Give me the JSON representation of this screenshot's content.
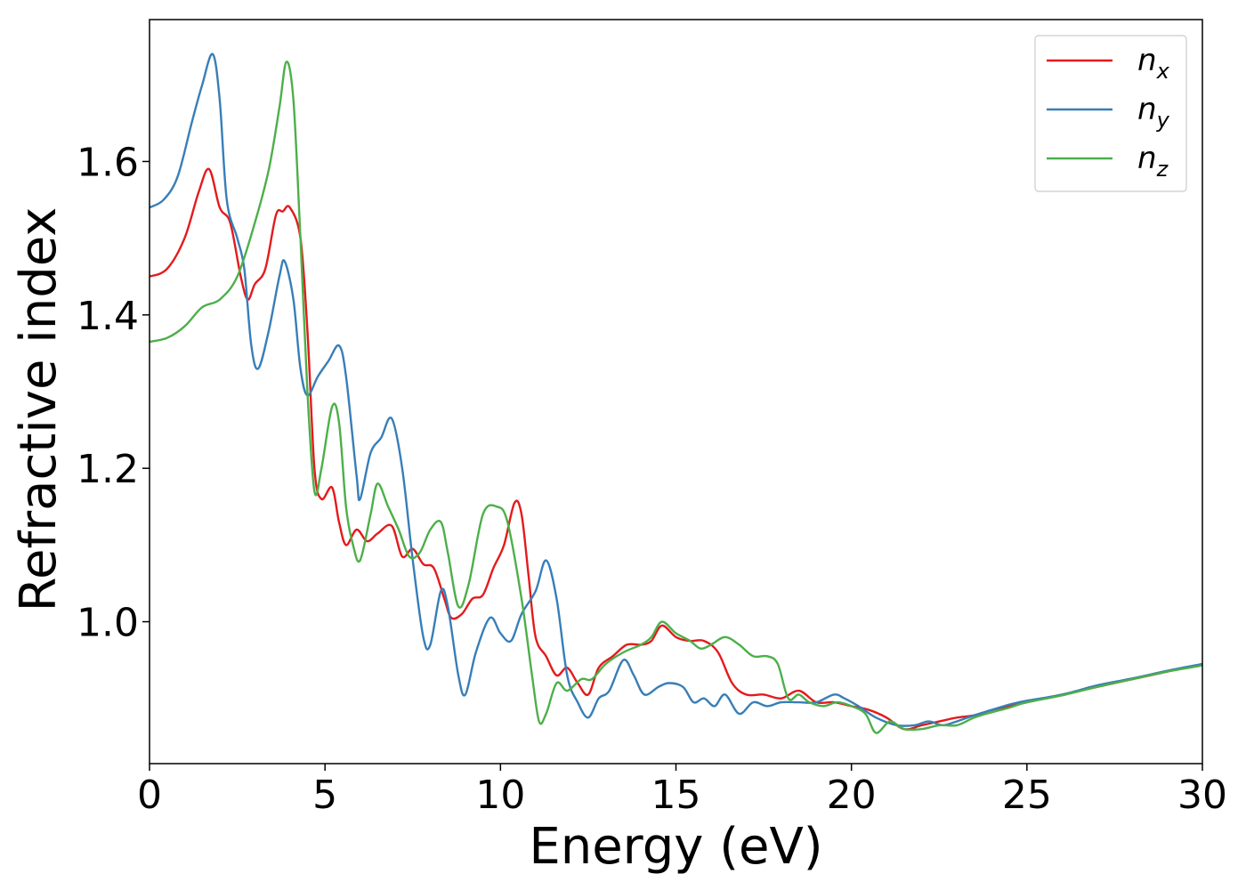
{
  "chart_data": {
    "type": "line",
    "title": "",
    "xlabel": "Energy (eV)",
    "ylabel": "Refractive index",
    "xlim": [
      0,
      30
    ],
    "ylim": [
      0.815,
      1.785
    ],
    "xticks": [
      0,
      5,
      10,
      15,
      20,
      25,
      30
    ],
    "yticks": [
      1.0,
      1.2,
      1.4,
      1.6
    ],
    "xtick_labels": [
      "0",
      "5",
      "10",
      "15",
      "20",
      "25",
      "30"
    ],
    "ytick_labels": [
      "1.0",
      "1.2",
      "1.4",
      "1.6"
    ],
    "grid": false,
    "legend_position": "top-right",
    "series": [
      {
        "name": "n_x",
        "legend_main": "n",
        "legend_sub": "x",
        "color": "#e41a1c",
        "points": [
          [
            0,
            1.45
          ],
          [
            0.5,
            1.46
          ],
          [
            1.0,
            1.5
          ],
          [
            1.4,
            1.56
          ],
          [
            1.7,
            1.59
          ],
          [
            2.0,
            1.54
          ],
          [
            2.3,
            1.52
          ],
          [
            2.6,
            1.45
          ],
          [
            2.8,
            1.42
          ],
          [
            3.0,
            1.44
          ],
          [
            3.3,
            1.46
          ],
          [
            3.6,
            1.53
          ],
          [
            3.8,
            1.535
          ],
          [
            4.0,
            1.54
          ],
          [
            4.3,
            1.5
          ],
          [
            4.5,
            1.38
          ],
          [
            4.7,
            1.2
          ],
          [
            4.9,
            1.16
          ],
          [
            5.2,
            1.175
          ],
          [
            5.4,
            1.13
          ],
          [
            5.6,
            1.1
          ],
          [
            5.9,
            1.12
          ],
          [
            6.2,
            1.105
          ],
          [
            6.5,
            1.115
          ],
          [
            6.9,
            1.125
          ],
          [
            7.2,
            1.085
          ],
          [
            7.5,
            1.095
          ],
          [
            7.8,
            1.075
          ],
          [
            8.1,
            1.07
          ],
          [
            8.4,
            1.03
          ],
          [
            8.6,
            1.005
          ],
          [
            8.9,
            1.01
          ],
          [
            9.2,
            1.03
          ],
          [
            9.5,
            1.035
          ],
          [
            9.8,
            1.07
          ],
          [
            10.1,
            1.1
          ],
          [
            10.4,
            1.155
          ],
          [
            10.6,
            1.14
          ],
          [
            10.8,
            1.06
          ],
          [
            11.0,
            0.98
          ],
          [
            11.3,
            0.955
          ],
          [
            11.6,
            0.93
          ],
          [
            11.9,
            0.94
          ],
          [
            12.2,
            0.92
          ],
          [
            12.5,
            0.905
          ],
          [
            12.8,
            0.94
          ],
          [
            13.2,
            0.955
          ],
          [
            13.6,
            0.97
          ],
          [
            14.0,
            0.97
          ],
          [
            14.3,
            0.975
          ],
          [
            14.6,
            0.995
          ],
          [
            15.0,
            0.98
          ],
          [
            15.4,
            0.975
          ],
          [
            15.8,
            0.975
          ],
          [
            16.2,
            0.96
          ],
          [
            16.6,
            0.92
          ],
          [
            17.0,
            0.905
          ],
          [
            17.5,
            0.905
          ],
          [
            18.0,
            0.9
          ],
          [
            18.5,
            0.91
          ],
          [
            19.0,
            0.895
          ],
          [
            19.5,
            0.895
          ],
          [
            20.0,
            0.89
          ],
          [
            20.5,
            0.885
          ],
          [
            21.0,
            0.875
          ],
          [
            21.5,
            0.86
          ],
          [
            22.0,
            0.865
          ],
          [
            22.5,
            0.87
          ],
          [
            23.0,
            0.875
          ],
          [
            23.5,
            0.878
          ],
          [
            24.0,
            0.885
          ],
          [
            24.5,
            0.89
          ],
          [
            25.0,
            0.895
          ],
          [
            26.0,
            0.905
          ],
          [
            27.0,
            0.915
          ],
          [
            28.0,
            0.925
          ],
          [
            29.0,
            0.935
          ],
          [
            30.0,
            0.945
          ]
        ]
      },
      {
        "name": "n_y",
        "legend_main": "n",
        "legend_sub": "y",
        "color": "#377eb8",
        "points": [
          [
            0,
            1.54
          ],
          [
            0.4,
            1.55
          ],
          [
            0.8,
            1.58
          ],
          [
            1.2,
            1.65
          ],
          [
            1.5,
            1.7
          ],
          [
            1.8,
            1.74
          ],
          [
            2.0,
            1.68
          ],
          [
            2.2,
            1.55
          ],
          [
            2.5,
            1.5
          ],
          [
            2.7,
            1.46
          ],
          [
            2.9,
            1.36
          ],
          [
            3.1,
            1.33
          ],
          [
            3.4,
            1.38
          ],
          [
            3.7,
            1.45
          ],
          [
            3.85,
            1.47
          ],
          [
            4.1,
            1.42
          ],
          [
            4.3,
            1.33
          ],
          [
            4.5,
            1.295
          ],
          [
            4.8,
            1.32
          ],
          [
            5.1,
            1.34
          ],
          [
            5.4,
            1.36
          ],
          [
            5.6,
            1.32
          ],
          [
            5.9,
            1.19
          ],
          [
            6.0,
            1.16
          ],
          [
            6.3,
            1.22
          ],
          [
            6.6,
            1.24
          ],
          [
            6.9,
            1.265
          ],
          [
            7.2,
            1.2
          ],
          [
            7.5,
            1.08
          ],
          [
            7.8,
            0.98
          ],
          [
            8.0,
            0.97
          ],
          [
            8.3,
            1.04
          ],
          [
            8.5,
            1.02
          ],
          [
            8.8,
            0.93
          ],
          [
            9.0,
            0.905
          ],
          [
            9.3,
            0.96
          ],
          [
            9.7,
            1.005
          ],
          [
            10.0,
            0.985
          ],
          [
            10.3,
            0.975
          ],
          [
            10.6,
            1.01
          ],
          [
            11.0,
            1.04
          ],
          [
            11.3,
            1.08
          ],
          [
            11.6,
            1.03
          ],
          [
            11.9,
            0.93
          ],
          [
            12.2,
            0.895
          ],
          [
            12.5,
            0.875
          ],
          [
            12.8,
            0.9
          ],
          [
            13.1,
            0.91
          ],
          [
            13.5,
            0.95
          ],
          [
            13.8,
            0.93
          ],
          [
            14.1,
            0.905
          ],
          [
            14.5,
            0.915
          ],
          [
            14.8,
            0.92
          ],
          [
            15.2,
            0.915
          ],
          [
            15.5,
            0.895
          ],
          [
            15.8,
            0.9
          ],
          [
            16.1,
            0.89
          ],
          [
            16.4,
            0.905
          ],
          [
            16.8,
            0.88
          ],
          [
            17.2,
            0.895
          ],
          [
            17.6,
            0.89
          ],
          [
            18.0,
            0.895
          ],
          [
            18.5,
            0.895
          ],
          [
            19.0,
            0.895
          ],
          [
            19.5,
            0.905
          ],
          [
            19.8,
            0.9
          ],
          [
            20.2,
            0.89
          ],
          [
            20.7,
            0.875
          ],
          [
            21.3,
            0.865
          ],
          [
            21.8,
            0.865
          ],
          [
            22.2,
            0.87
          ],
          [
            22.6,
            0.865
          ],
          [
            23.0,
            0.87
          ],
          [
            23.5,
            0.878
          ],
          [
            24.0,
            0.885
          ],
          [
            24.5,
            0.892
          ],
          [
            25.0,
            0.897
          ],
          [
            26.0,
            0.905
          ],
          [
            27.0,
            0.917
          ],
          [
            28.0,
            0.926
          ],
          [
            29.0,
            0.936
          ],
          [
            30.0,
            0.945
          ]
        ]
      },
      {
        "name": "n_z",
        "legend_main": "n",
        "legend_sub": "z",
        "color": "#4daf4a",
        "points": [
          [
            0,
            1.365
          ],
          [
            0.5,
            1.37
          ],
          [
            1.0,
            1.385
          ],
          [
            1.5,
            1.41
          ],
          [
            2.0,
            1.42
          ],
          [
            2.5,
            1.45
          ],
          [
            3.0,
            1.52
          ],
          [
            3.4,
            1.59
          ],
          [
            3.7,
            1.67
          ],
          [
            3.9,
            1.73
          ],
          [
            4.1,
            1.68
          ],
          [
            4.3,
            1.5
          ],
          [
            4.5,
            1.3
          ],
          [
            4.7,
            1.17
          ],
          [
            4.9,
            1.2
          ],
          [
            5.2,
            1.28
          ],
          [
            5.4,
            1.26
          ],
          [
            5.6,
            1.15
          ],
          [
            5.8,
            1.1
          ],
          [
            6.0,
            1.08
          ],
          [
            6.3,
            1.14
          ],
          [
            6.5,
            1.18
          ],
          [
            6.8,
            1.15
          ],
          [
            7.1,
            1.12
          ],
          [
            7.4,
            1.085
          ],
          [
            7.7,
            1.09
          ],
          [
            8.0,
            1.12
          ],
          [
            8.3,
            1.13
          ],
          [
            8.5,
            1.09
          ],
          [
            8.8,
            1.02
          ],
          [
            9.1,
            1.05
          ],
          [
            9.5,
            1.14
          ],
          [
            9.9,
            1.15
          ],
          [
            10.2,
            1.13
          ],
          [
            10.6,
            1.03
          ],
          [
            10.9,
            0.93
          ],
          [
            11.1,
            0.87
          ],
          [
            11.3,
            0.88
          ],
          [
            11.6,
            0.92
          ],
          [
            11.9,
            0.91
          ],
          [
            12.3,
            0.925
          ],
          [
            12.6,
            0.925
          ],
          [
            13.0,
            0.945
          ],
          [
            13.5,
            0.96
          ],
          [
            14.0,
            0.97
          ],
          [
            14.3,
            0.98
          ],
          [
            14.6,
            1.0
          ],
          [
            15.0,
            0.985
          ],
          [
            15.4,
            0.975
          ],
          [
            15.7,
            0.965
          ],
          [
            16.0,
            0.97
          ],
          [
            16.4,
            0.98
          ],
          [
            16.8,
            0.97
          ],
          [
            17.2,
            0.955
          ],
          [
            17.6,
            0.955
          ],
          [
            17.9,
            0.945
          ],
          [
            18.2,
            0.9
          ],
          [
            18.5,
            0.905
          ],
          [
            18.8,
            0.895
          ],
          [
            19.2,
            0.89
          ],
          [
            19.6,
            0.895
          ],
          [
            20.0,
            0.89
          ],
          [
            20.4,
            0.88
          ],
          [
            20.7,
            0.855
          ],
          [
            21.1,
            0.87
          ],
          [
            21.5,
            0.86
          ],
          [
            22.0,
            0.86
          ],
          [
            22.5,
            0.865
          ],
          [
            23.0,
            0.865
          ],
          [
            23.5,
            0.875
          ],
          [
            24.0,
            0.882
          ],
          [
            24.5,
            0.888
          ],
          [
            25.0,
            0.895
          ],
          [
            26.0,
            0.904
          ],
          [
            27.0,
            0.915
          ],
          [
            28.0,
            0.925
          ],
          [
            29.0,
            0.935
          ],
          [
            30.0,
            0.943
          ]
        ]
      }
    ]
  }
}
